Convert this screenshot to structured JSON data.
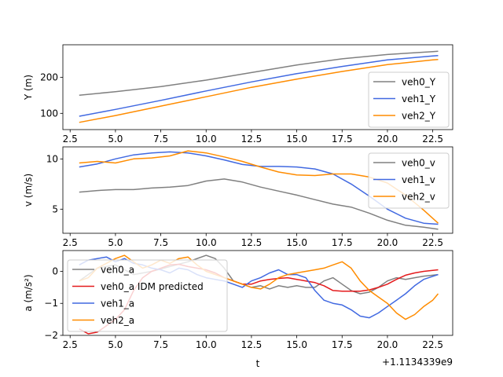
{
  "chart_data": [
    {
      "type": "line",
      "ylabel": "Y (m)",
      "xlim": [
        2.1,
        23.6
      ],
      "ylim": [
        55,
        290
      ],
      "xticks": [
        2.5,
        5.0,
        7.5,
        10.0,
        12.5,
        15.0,
        17.5,
        20.0,
        22.5
      ],
      "xtick_labels": [
        "2.5",
        "5.0",
        "7.5",
        "10.0",
        "12.5",
        "15.0",
        "17.5",
        "20.0",
        "22.5"
      ],
      "yticks": [
        100,
        200
      ],
      "ytick_labels": [
        "100",
        "200"
      ],
      "legend": "lower-right",
      "series": [
        {
          "name": "veh0_Y",
          "color": "#808080",
          "points": [
            [
              3,
              150
            ],
            [
              5,
              160
            ],
            [
              7.5,
              174
            ],
            [
              10,
              192
            ],
            [
              12.5,
              213
            ],
            [
              15,
              234
            ],
            [
              17.5,
              251
            ],
            [
              20,
              263
            ],
            [
              22.5,
              271
            ],
            [
              22.8,
              272
            ]
          ]
        },
        {
          "name": "veh1_Y",
          "color": "#4169e1",
          "points": [
            [
              3,
              92
            ],
            [
              5,
              111
            ],
            [
              7.5,
              136
            ],
            [
              10,
              162
            ],
            [
              12.5,
              187
            ],
            [
              15,
              210
            ],
            [
              17.5,
              230
            ],
            [
              20,
              248
            ],
            [
              22.5,
              259
            ],
            [
              22.8,
              260
            ]
          ]
        },
        {
          "name": "veh2_Y",
          "color": "#ff8c00",
          "points": [
            [
              3,
              75
            ],
            [
              5,
              94
            ],
            [
              7.5,
              120
            ],
            [
              10,
              146
            ],
            [
              12.5,
              172
            ],
            [
              15,
              195
            ],
            [
              17.5,
              216
            ],
            [
              20,
              235
            ],
            [
              22.5,
              248
            ],
            [
              22.8,
              249
            ]
          ]
        }
      ]
    },
    {
      "type": "line",
      "ylabel": "v (m/s)",
      "xlim": [
        2.1,
        23.6
      ],
      "ylim": [
        2.6,
        11.2
      ],
      "xticks": [
        2.5,
        5.0,
        7.5,
        10.0,
        12.5,
        15.0,
        17.5,
        20.0,
        22.5
      ],
      "xtick_labels": [
        "2.5",
        "5.0",
        "7.5",
        "10.0",
        "12.5",
        "15.0",
        "17.5",
        "20.0",
        "22.5"
      ],
      "yticks": [
        5,
        10
      ],
      "ytick_labels": [
        "5",
        "10"
      ],
      "legend": "upper-right",
      "series": [
        {
          "name": "veh0_v",
          "color": "#808080",
          "points": [
            [
              3,
              6.7
            ],
            [
              4,
              6.85
            ],
            [
              5,
              6.95
            ],
            [
              6,
              6.95
            ],
            [
              7,
              7.1
            ],
            [
              8,
              7.2
            ],
            [
              9,
              7.35
            ],
            [
              10,
              7.8
            ],
            [
              11,
              8.0
            ],
            [
              12,
              7.7
            ],
            [
              13,
              7.2
            ],
            [
              14,
              6.8
            ],
            [
              15,
              6.4
            ],
            [
              16,
              5.95
            ],
            [
              17,
              5.5
            ],
            [
              18,
              5.2
            ],
            [
              19,
              4.6
            ],
            [
              20,
              3.9
            ],
            [
              21,
              3.4
            ],
            [
              22,
              3.2
            ],
            [
              22.8,
              3.0
            ]
          ]
        },
        {
          "name": "veh1_v",
          "color": "#4169e1",
          "points": [
            [
              3,
              9.2
            ],
            [
              4,
              9.5
            ],
            [
              5,
              10.0
            ],
            [
              6,
              10.4
            ],
            [
              7,
              10.6
            ],
            [
              8,
              10.7
            ],
            [
              9,
              10.6
            ],
            [
              10,
              10.3
            ],
            [
              11,
              9.9
            ],
            [
              12,
              9.45
            ],
            [
              13,
              9.25
            ],
            [
              14,
              9.25
            ],
            [
              15,
              9.2
            ],
            [
              16,
              9.0
            ],
            [
              17,
              8.5
            ],
            [
              18,
              7.5
            ],
            [
              19,
              6.3
            ],
            [
              20,
              5.0
            ],
            [
              21,
              4.1
            ],
            [
              22,
              3.6
            ],
            [
              22.8,
              3.5
            ]
          ]
        },
        {
          "name": "veh2_v",
          "color": "#ff8c00",
          "points": [
            [
              3,
              9.6
            ],
            [
              4,
              9.75
            ],
            [
              5,
              9.6
            ],
            [
              6,
              10.0
            ],
            [
              7,
              10.1
            ],
            [
              8,
              10.3
            ],
            [
              9,
              10.8
            ],
            [
              10,
              10.6
            ],
            [
              11,
              10.2
            ],
            [
              12,
              9.75
            ],
            [
              13,
              9.2
            ],
            [
              14,
              8.7
            ],
            [
              15,
              8.4
            ],
            [
              16,
              8.35
            ],
            [
              17,
              8.5
            ],
            [
              18,
              8.5
            ],
            [
              19,
              8.2
            ],
            [
              20,
              7.6
            ],
            [
              21,
              6.4
            ],
            [
              22,
              4.9
            ],
            [
              22.8,
              3.6
            ]
          ]
        }
      ]
    },
    {
      "type": "line",
      "ylabel": "a (m/s²)",
      "xlabel": "t",
      "offset_label": "+1.1134339e9",
      "xlim": [
        2.1,
        23.6
      ],
      "ylim": [
        -2.0,
        0.65
      ],
      "xticks": [
        2.5,
        5.0,
        7.5,
        10.0,
        12.5,
        15.0,
        17.5,
        20.0,
        22.5
      ],
      "xtick_labels": [
        "2.5",
        "5.0",
        "7.5",
        "10.0",
        "12.5",
        "15.0",
        "17.5",
        "20.0",
        "22.5"
      ],
      "yticks": [
        -2,
        -1,
        0
      ],
      "ytick_labels": [
        "−2",
        "−1",
        "0"
      ],
      "legend": "lower-left",
      "series": [
        {
          "name": "veh0_a",
          "color": "#808080",
          "points": [
            [
              3,
              -0.3
            ],
            [
              4,
              0.1
            ],
            [
              5,
              0.2
            ],
            [
              6,
              -0.1
            ],
            [
              7,
              0.0
            ],
            [
              8,
              0.15
            ],
            [
              9,
              0.3
            ],
            [
              10,
              0.5
            ],
            [
              10.5,
              0.4
            ],
            [
              11,
              0.1
            ],
            [
              11.5,
              -0.3
            ],
            [
              12,
              -0.4
            ],
            [
              12.5,
              -0.5
            ],
            [
              13,
              -0.45
            ],
            [
              13.5,
              -0.55
            ],
            [
              14,
              -0.45
            ],
            [
              14.5,
              -0.5
            ],
            [
              15,
              -0.45
            ],
            [
              15.5,
              -0.5
            ],
            [
              16,
              -0.5
            ],
            [
              16.5,
              -0.3
            ],
            [
              17,
              -0.2
            ],
            [
              17.5,
              -0.4
            ],
            [
              18,
              -0.6
            ],
            [
              18.5,
              -0.7
            ],
            [
              19,
              -0.65
            ],
            [
              19.5,
              -0.5
            ],
            [
              20,
              -0.3
            ],
            [
              20.5,
              -0.2
            ],
            [
              21,
              -0.25
            ],
            [
              21.5,
              -0.2
            ],
            [
              22,
              -0.15
            ],
            [
              22.8,
              -0.1
            ]
          ]
        },
        {
          "name": "veh0_a IDM predicted",
          "color": "#e41a1c",
          "points": [
            [
              3,
              -1.8
            ],
            [
              3.5,
              -1.95
            ],
            [
              4,
              -1.9
            ],
            [
              4.5,
              -1.7
            ],
            [
              5,
              -1.5
            ],
            [
              5.5,
              -1.2
            ],
            [
              6,
              -0.6
            ],
            [
              6.5,
              -0.2
            ],
            [
              7,
              0.0
            ],
            [
              7.5,
              0.1
            ],
            [
              8,
              0.2
            ],
            [
              8.5,
              0.22
            ],
            [
              9,
              0.15
            ],
            [
              9.5,
              0.1
            ],
            [
              10,
              0.05
            ],
            [
              10.5,
              -0.05
            ],
            [
              11,
              -0.2
            ],
            [
              11.5,
              -0.3
            ],
            [
              12,
              -0.4
            ],
            [
              12.5,
              -0.4
            ],
            [
              13,
              -0.3
            ],
            [
              13.5,
              -0.25
            ],
            [
              14,
              -0.22
            ],
            [
              14.5,
              -0.2
            ],
            [
              15,
              -0.25
            ],
            [
              15.5,
              -0.3
            ],
            [
              16,
              -0.35
            ],
            [
              16.5,
              -0.45
            ],
            [
              17,
              -0.6
            ],
            [
              17.5,
              -0.62
            ],
            [
              18,
              -0.62
            ],
            [
              18.5,
              -0.62
            ],
            [
              19,
              -0.58
            ],
            [
              19.5,
              -0.5
            ],
            [
              20,
              -0.4
            ],
            [
              20.5,
              -0.25
            ],
            [
              21,
              -0.12
            ],
            [
              21.5,
              -0.05
            ],
            [
              22,
              0.0
            ],
            [
              22.8,
              0.05
            ]
          ]
        },
        {
          "name": "veh1_a",
          "color": "#4169e1",
          "points": [
            [
              3,
              0.2
            ],
            [
              3.5,
              0.35
            ],
            [
              4,
              0.4
            ],
            [
              4.5,
              0.45
            ],
            [
              5,
              0.3
            ],
            [
              5.5,
              0.4
            ],
            [
              6,
              0.25
            ],
            [
              6.5,
              0.2
            ],
            [
              7,
              0.1
            ],
            [
              7.5,
              0.05
            ],
            [
              8,
              -0.05
            ],
            [
              8.5,
              0.1
            ],
            [
              9,
              0.05
            ],
            [
              9.5,
              -0.1
            ],
            [
              10,
              -0.2
            ],
            [
              10.5,
              -0.25
            ],
            [
              11,
              -0.3
            ],
            [
              11.5,
              -0.4
            ],
            [
              12,
              -0.5
            ],
            [
              12.5,
              -0.3
            ],
            [
              13,
              -0.2
            ],
            [
              13.5,
              -0.05
            ],
            [
              14,
              0.05
            ],
            [
              14.5,
              -0.1
            ],
            [
              15,
              -0.1
            ],
            [
              15.5,
              -0.2
            ],
            [
              16,
              -0.6
            ],
            [
              16.5,
              -0.9
            ],
            [
              17,
              -1.0
            ],
            [
              17.5,
              -1.05
            ],
            [
              18,
              -1.2
            ],
            [
              18.5,
              -1.4
            ],
            [
              19,
              -1.45
            ],
            [
              19.5,
              -1.3
            ],
            [
              20,
              -1.1
            ],
            [
              20.5,
              -0.9
            ],
            [
              21,
              -0.7
            ],
            [
              21.5,
              -0.45
            ],
            [
              22,
              -0.25
            ],
            [
              22.8,
              -0.1
            ]
          ]
        },
        {
          "name": "veh2_a",
          "color": "#ff8c00",
          "points": [
            [
              3,
              -0.3
            ],
            [
              3.5,
              -0.2
            ],
            [
              4,
              0.1
            ],
            [
              4.5,
              0.25
            ],
            [
              5,
              0.4
            ],
            [
              5.5,
              0.5
            ],
            [
              6,
              0.3
            ],
            [
              6.5,
              0.1
            ],
            [
              7,
              0.2
            ],
            [
              7.5,
              0.35
            ],
            [
              8,
              0.25
            ],
            [
              8.5,
              0.4
            ],
            [
              9,
              0.45
            ],
            [
              9.5,
              0.2
            ],
            [
              10,
              0.0
            ],
            [
              10.5,
              -0.1
            ],
            [
              11,
              -0.2
            ],
            [
              11.5,
              -0.3
            ],
            [
              12,
              -0.4
            ],
            [
              12.5,
              -0.5
            ],
            [
              13,
              -0.55
            ],
            [
              13.5,
              -0.4
            ],
            [
              14,
              -0.2
            ],
            [
              14.5,
              -0.1
            ],
            [
              15,
              -0.05
            ],
            [
              15.5,
              0.0
            ],
            [
              16,
              0.05
            ],
            [
              16.5,
              0.1
            ],
            [
              17,
              0.2
            ],
            [
              17.5,
              0.3
            ],
            [
              18,
              0.1
            ],
            [
              18.5,
              -0.3
            ],
            [
              19,
              -0.6
            ],
            [
              19.5,
              -0.8
            ],
            [
              20,
              -1.0
            ],
            [
              20.5,
              -1.3
            ],
            [
              21,
              -1.5
            ],
            [
              21.5,
              -1.35
            ],
            [
              22,
              -1.1
            ],
            [
              22.5,
              -0.9
            ],
            [
              22.8,
              -0.7
            ]
          ]
        }
      ]
    }
  ]
}
